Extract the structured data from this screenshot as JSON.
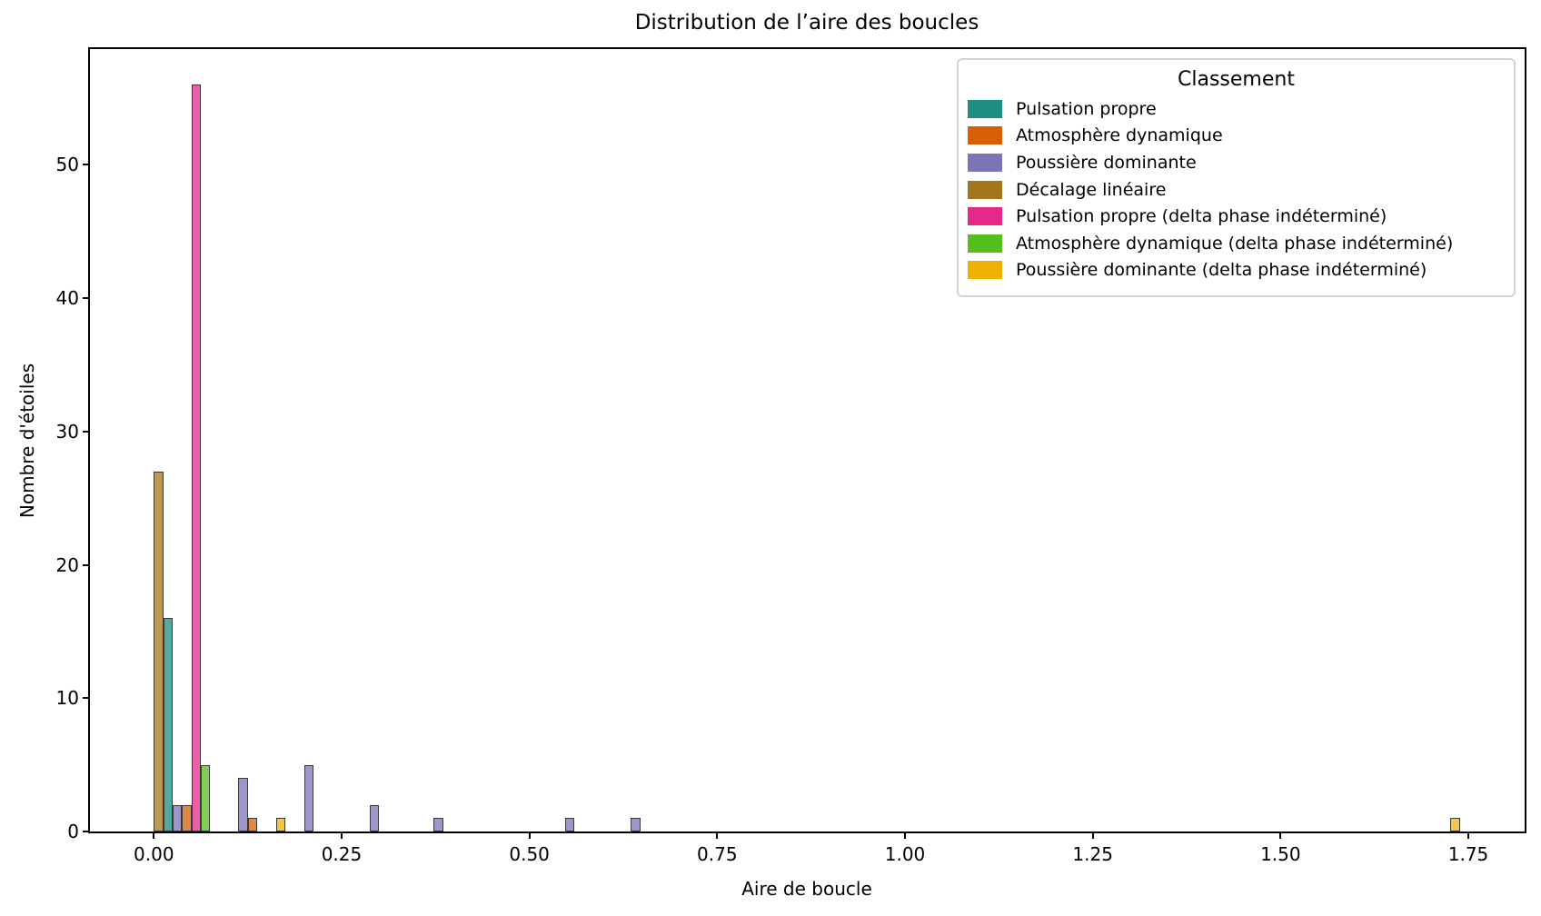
{
  "title": "Distribution de l’aire des boucles",
  "chart_data": {
    "type": "bar",
    "subtype": "histogram-dodged",
    "title": "Distribution de l’aire des boucles",
    "xlabel": "Aire de boucle",
    "ylabel": "Nombre d'étoiles",
    "legend_title": "Classement",
    "legend_position": "upper right",
    "grid": false,
    "bar_alpha": 0.75,
    "bar_width": 0.0125,
    "xlim": [
      -0.085,
      1.825
    ],
    "ylim": [
      0,
      58.7
    ],
    "x_ticks": [
      0,
      0.25,
      0.5,
      0.75,
      1.0,
      1.25,
      1.5,
      1.75
    ],
    "x_tick_labels": [
      "0.00",
      "0.25",
      "0.50",
      "0.75",
      "1.00",
      "1.25",
      "1.50",
      "1.75"
    ],
    "y_ticks": [
      0,
      10,
      20,
      30,
      40,
      50
    ],
    "y_tick_labels": [
      "0",
      "10",
      "20",
      "30",
      "40",
      "50"
    ],
    "series": [
      {
        "name": "Pulsation propre",
        "color": "#1e8c7f",
        "bars": [
          {
            "x": 0.0125,
            "count": 16
          }
        ]
      },
      {
        "name": "Atmosphère dynamique",
        "color": "#d85f04",
        "bars": [
          {
            "x": 0.0375,
            "count": 2
          },
          {
            "x": 0.125,
            "count": 1
          }
        ]
      },
      {
        "name": "Poussière dominante",
        "color": "#7974b5",
        "bars": [
          {
            "x": 0.025,
            "count": 2
          },
          {
            "x": 0.1125,
            "count": 4
          },
          {
            "x": 0.2,
            "count": 5
          },
          {
            "x": 0.2875,
            "count": 2
          },
          {
            "x": 0.3725,
            "count": 1
          },
          {
            "x": 0.5475,
            "count": 1
          },
          {
            "x": 0.635,
            "count": 1
          }
        ]
      },
      {
        "name": "Décalage linéaire",
        "color": "#a6761d",
        "bars": [
          {
            "x": 0.0,
            "count": 27
          }
        ]
      },
      {
        "name": "Pulsation propre (delta phase indéterminé)",
        "color": "#e32a8b",
        "bars": [
          {
            "x": 0.05,
            "count": 56
          }
        ]
      },
      {
        "name": "Atmosphère dynamique (delta phase indéterminé)",
        "color": "#56bd1e",
        "bars": [
          {
            "x": 0.0625,
            "count": 5
          }
        ]
      },
      {
        "name": "Poussière dominante (delta phase indéterminé)",
        "color": "#eeb302",
        "bars": [
          {
            "x": 0.1625,
            "count": 1
          },
          {
            "x": 1.726,
            "count": 1
          }
        ]
      }
    ]
  }
}
